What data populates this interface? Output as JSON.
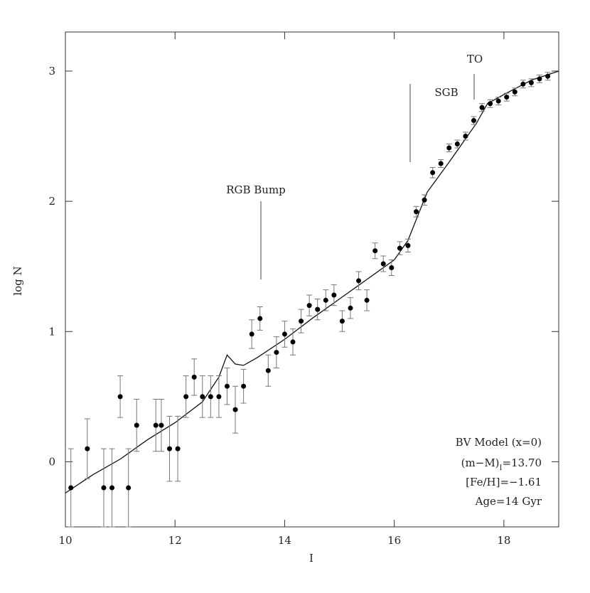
{
  "chart_data": {
    "type": "scatter",
    "xlabel": "I",
    "ylabel": "log N",
    "xlim": [
      10,
      19
    ],
    "ylim": [
      -0.5,
      3.3
    ],
    "xticks": [
      10,
      12,
      14,
      16,
      18
    ],
    "yticks": [
      0,
      1,
      2,
      3
    ],
    "color": "#000000",
    "x": [
      10.1,
      10.4,
      10.7,
      10.85,
      11.0,
      11.15,
      11.3,
      11.65,
      11.75,
      11.9,
      12.05,
      12.2,
      12.35,
      12.5,
      12.65,
      12.8,
      12.95,
      13.1,
      13.25,
      13.4,
      13.55,
      13.7,
      13.85,
      14.0,
      14.15,
      14.3,
      14.45,
      14.6,
      14.75,
      14.9,
      15.05,
      15.2,
      15.35,
      15.5,
      15.65,
      15.8,
      15.95,
      16.1,
      16.25,
      16.4,
      16.55,
      16.7,
      16.85,
      17.0,
      17.15,
      17.3,
      17.45,
      17.6,
      17.75,
      17.9,
      18.05,
      18.2,
      18.35,
      18.5,
      18.65,
      18.8
    ],
    "values": [
      -0.2,
      0.1,
      -0.2,
      -0.2,
      0.5,
      -0.2,
      0.28,
      0.28,
      0.28,
      0.1,
      0.1,
      0.5,
      0.65,
      0.5,
      0.5,
      0.5,
      0.58,
      0.4,
      0.58,
      0.98,
      1.1,
      0.7,
      0.84,
      0.98,
      0.92,
      1.08,
      1.2,
      1.17,
      1.24,
      1.28,
      1.08,
      1.18,
      1.39,
      1.24,
      1.62,
      1.52,
      1.49,
      1.64,
      1.66,
      1.92,
      2.01,
      2.22,
      2.29,
      2.41,
      2.44,
      2.5,
      2.62,
      2.72,
      2.75,
      2.77,
      2.8,
      2.84,
      2.9,
      2.91,
      2.94,
      2.96
    ],
    "errors": [
      0.3,
      0.23,
      0.3,
      0.3,
      0.16,
      0.3,
      0.2,
      0.2,
      0.2,
      0.25,
      0.25,
      0.16,
      0.14,
      0.16,
      0.16,
      0.16,
      0.14,
      0.18,
      0.13,
      0.11,
      0.09,
      0.12,
      0.12,
      0.1,
      0.1,
      0.09,
      0.08,
      0.08,
      0.08,
      0.08,
      0.08,
      0.08,
      0.07,
      0.08,
      0.06,
      0.06,
      0.06,
      0.05,
      0.05,
      0.04,
      0.04,
      0.04,
      0.03,
      0.03,
      0.03,
      0.03,
      0.03,
      0.03,
      0.03,
      0.03,
      0.03,
      0.03,
      0.03,
      0.03,
      0.03,
      0.03
    ],
    "model": {
      "x": [
        10,
        10.5,
        11,
        11.5,
        12,
        12.5,
        12.8,
        12.95,
        13.1,
        13.25,
        13.5,
        14,
        14.5,
        15,
        15.5,
        16,
        16.25,
        16.6,
        17,
        17.5,
        17.7,
        18,
        18.5,
        19
      ],
      "values": [
        -0.24,
        -0.1,
        0.02,
        0.17,
        0.3,
        0.46,
        0.65,
        0.82,
        0.75,
        0.74,
        0.8,
        0.94,
        1.1,
        1.25,
        1.4,
        1.55,
        1.7,
        2.07,
        2.3,
        2.6,
        2.75,
        2.82,
        2.93,
        3.0
      ]
    },
    "annotations": {
      "rgb": "RGB Bump",
      "sgb": "SGB",
      "to": "TO"
    },
    "legend": {
      "model": "BV Model (x=0)",
      "distance_main": "(m−M)",
      "distance_sub": "I",
      "distance_rest": "=13.70",
      "metal": "[Fe/H]=−1.61",
      "age": "Age=14 Gyr"
    }
  }
}
